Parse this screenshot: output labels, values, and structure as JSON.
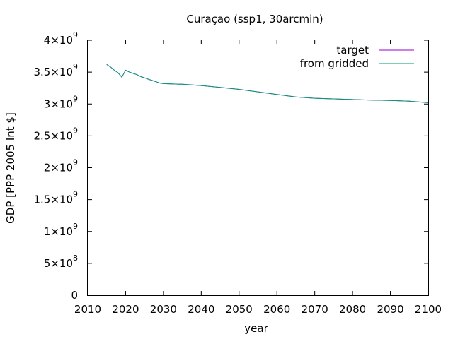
{
  "chart_data": {
    "type": "line",
    "title": "Curaçao (ssp1, 30arcmin)",
    "xlabel": "year",
    "ylabel": "GDP [PPP 2005 Int $]",
    "xlim": [
      2010,
      2100
    ],
    "ylim": [
      0,
      4000000000
    ],
    "x_ticks": [
      2010,
      2020,
      2030,
      2040,
      2050,
      2060,
      2070,
      2080,
      2090,
      2100
    ],
    "y_ticks": [
      {
        "value": 0,
        "mant": "0",
        "exp": ""
      },
      {
        "value": 500000000,
        "mant": "5×10",
        "exp": "8"
      },
      {
        "value": 1000000000,
        "mant": "1×10",
        "exp": "9"
      },
      {
        "value": 1500000000,
        "mant": "1.5×10",
        "exp": "9"
      },
      {
        "value": 2000000000,
        "mant": "2×10",
        "exp": "9"
      },
      {
        "value": 2500000000,
        "mant": "2.5×10",
        "exp": "9"
      },
      {
        "value": 3000000000,
        "mant": "3×10",
        "exp": "9"
      },
      {
        "value": 3500000000,
        "mant": "3.5×10",
        "exp": "9"
      },
      {
        "value": 4000000000,
        "mant": "4×10",
        "exp": "9"
      }
    ],
    "legend_position": "top-right",
    "grid": false,
    "series": [
      {
        "name": "target",
        "color": "#9400d3",
        "x": [
          2015,
          2016,
          2017,
          2018,
          2019,
          2020,
          2021,
          2022,
          2023,
          2024,
          2025,
          2026,
          2027,
          2028,
          2029,
          2030,
          2035,
          2040,
          2045,
          2050,
          2055,
          2060,
          2065,
          2070,
          2075,
          2080,
          2085,
          2090,
          2095,
          2100
        ],
        "values": [
          3620000000,
          3580000000,
          3530000000,
          3490000000,
          3420000000,
          3530000000,
          3500000000,
          3480000000,
          3460000000,
          3430000000,
          3410000000,
          3390000000,
          3370000000,
          3350000000,
          3330000000,
          3320000000,
          3310000000,
          3290000000,
          3260000000,
          3230000000,
          3190000000,
          3150000000,
          3110000000,
          3090000000,
          3080000000,
          3070000000,
          3060000000,
          3055000000,
          3045000000,
          3020000000
        ]
      },
      {
        "name": "from gridded",
        "color": "#009e73",
        "x": [
          2015,
          2016,
          2017,
          2018,
          2019,
          2020,
          2021,
          2022,
          2023,
          2024,
          2025,
          2026,
          2027,
          2028,
          2029,
          2030,
          2035,
          2040,
          2045,
          2050,
          2055,
          2060,
          2065,
          2070,
          2075,
          2080,
          2085,
          2090,
          2095,
          2100
        ],
        "values": [
          3620000000,
          3580000000,
          3530000000,
          3490000000,
          3420000000,
          3530000000,
          3500000000,
          3480000000,
          3460000000,
          3430000000,
          3410000000,
          3390000000,
          3370000000,
          3350000000,
          3330000000,
          3320000000,
          3310000000,
          3290000000,
          3260000000,
          3230000000,
          3190000000,
          3150000000,
          3110000000,
          3090000000,
          3080000000,
          3070000000,
          3060000000,
          3055000000,
          3045000000,
          3020000000
        ]
      }
    ]
  }
}
